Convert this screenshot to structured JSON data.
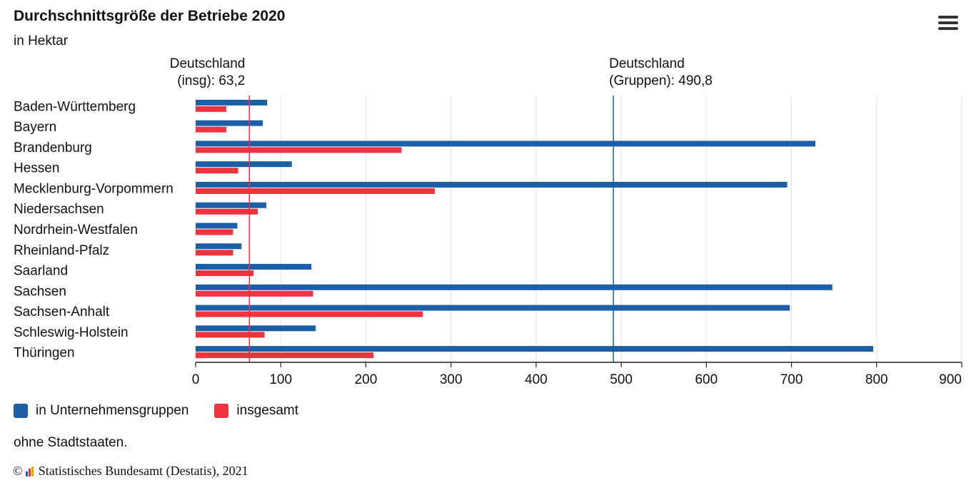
{
  "header": {
    "title": "Durchschnittsgröße der Betriebe 2020",
    "subtitle": "in Hektar"
  },
  "menu": {
    "icon": "hamburger-menu-icon"
  },
  "chart_data": {
    "type": "bar",
    "orientation": "horizontal",
    "title": "Durchschnittsgröße der Betriebe 2020",
    "subtitle": "in Hektar",
    "xlabel": "",
    "ylabel": "",
    "xlim": [
      0,
      900
    ],
    "ticks": [
      0,
      100,
      200,
      300,
      400,
      500,
      600,
      700,
      800,
      900
    ],
    "categories": [
      "Baden-Württemberg",
      "Bayern",
      "Brandenburg",
      "Hessen",
      "Mecklenburg-Vorpommern",
      "Niedersachsen",
      "Nordrhein-Westfalen",
      "Rheinland-Pfalz",
      "Saarland",
      "Sachsen",
      "Sachsen-Anhalt",
      "Schleswig-Holstein",
      "Thüringen"
    ],
    "series": [
      {
        "name": "in Unternehmensgruppen",
        "color": "#1a5fa8",
        "values": [
          84,
          79,
          728,
          113,
          695,
          83,
          49,
          54,
          136,
          748,
          698,
          141,
          796
        ]
      },
      {
        "name": "insgesamt",
        "color": "#f0333f",
        "values": [
          36,
          36,
          242,
          50,
          281,
          73,
          44,
          44,
          68,
          138,
          267,
          81,
          209
        ]
      }
    ],
    "reference_lines": [
      {
        "label_line1": "Deutschland",
        "label_line2": "(insg): 63,2",
        "value": 63.2,
        "color": "#e5323d"
      },
      {
        "label_line1": "Deutschland",
        "label_line2": "(Gruppen): 490,8",
        "value": 490.8,
        "color": "#1a5fa8"
      }
    ],
    "grid": true,
    "legend": "bottom-left"
  },
  "legend": {
    "items": [
      {
        "label": "in Unternehmensgruppen",
        "color": "#1a5fa8"
      },
      {
        "label": "insgesamt",
        "color": "#f0333f"
      }
    ]
  },
  "footer": {
    "note": "ohne Stadtstaaten.",
    "copyright_symbol": "©",
    "source": "Statistisches Bundesamt (Destatis), 2021"
  }
}
